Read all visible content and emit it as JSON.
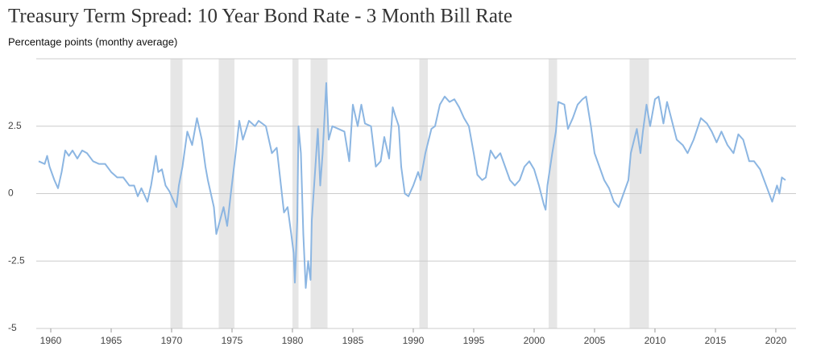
{
  "chart_data": {
    "type": "line",
    "title": "Treasury Term Spread: 10 Year Bond Rate - 3 Month Bill Rate",
    "subtitle": "Percentage points (monthy average)",
    "x": [
      1959.0,
      1959.5,
      1959.7,
      1959.9,
      1960.3,
      1960.6,
      1960.9,
      1961.2,
      1961.5,
      1961.8,
      1962.2,
      1962.6,
      1963.0,
      1963.5,
      1964.0,
      1964.5,
      1965.0,
      1965.5,
      1966.0,
      1966.5,
      1966.9,
      1967.2,
      1967.5,
      1968.0,
      1968.3,
      1968.7,
      1968.9,
      1969.2,
      1969.5,
      1969.8,
      1970.1,
      1970.4,
      1970.6,
      1970.9,
      1971.3,
      1971.7,
      1972.1,
      1972.5,
      1972.8,
      1973.0,
      1973.5,
      1973.7,
      1974.0,
      1974.3,
      1974.6,
      1974.9,
      1975.3,
      1975.6,
      1975.9,
      1976.4,
      1976.9,
      1977.2,
      1977.8,
      1978.3,
      1978.7,
      1979.0,
      1979.3,
      1979.6,
      1979.9,
      1980.1,
      1980.2,
      1980.4,
      1980.5,
      1980.7,
      1980.9,
      1981.1,
      1981.3,
      1981.5,
      1981.6,
      1981.9,
      1982.1,
      1982.3,
      1982.5,
      1982.8,
      1983.0,
      1983.3,
      1983.8,
      1984.3,
      1984.7,
      1985.0,
      1985.4,
      1985.7,
      1986.0,
      1986.5,
      1986.9,
      1987.3,
      1987.6,
      1988.0,
      1988.3,
      1988.5,
      1988.8,
      1989.0,
      1989.3,
      1989.6,
      1990.0,
      1990.4,
      1990.6,
      1991.0,
      1991.5,
      1991.8,
      1992.2,
      1992.6,
      1993.0,
      1993.4,
      1993.8,
      1994.2,
      1994.6,
      1995.0,
      1995.3,
      1995.7,
      1996.0,
      1996.4,
      1996.8,
      1997.2,
      1997.6,
      1998.0,
      1998.4,
      1998.8,
      1999.2,
      1999.6,
      2000.0,
      2000.4,
      2000.8,
      2000.95,
      2001.1,
      2001.5,
      2001.8,
      2002.0,
      2002.5,
      2002.8,
      2003.2,
      2003.6,
      2004.0,
      2004.3,
      2004.7,
      2005.0,
      2005.4,
      2005.8,
      2006.2,
      2006.6,
      2007.0,
      2007.4,
      2007.8,
      2008.0,
      2008.5,
      2008.8,
      2009.0,
      2009.3,
      2009.6,
      2010.0,
      2010.3,
      2010.7,
      2011.0,
      2011.4,
      2011.8,
      2012.3,
      2012.7,
      2013.2,
      2013.8,
      2014.3,
      2014.7,
      2015.1,
      2015.5,
      2016.0,
      2016.5,
      2016.9,
      2017.3,
      2017.8,
      2018.2,
      2018.7,
      2019.2,
      2019.7,
      2020.1,
      2020.3,
      2020.5,
      2020.8
    ],
    "values": [
      1.2,
      1.1,
      1.4,
      1.0,
      0.5,
      0.2,
      0.8,
      1.6,
      1.4,
      1.6,
      1.3,
      1.6,
      1.5,
      1.2,
      1.1,
      1.1,
      0.8,
      0.6,
      0.6,
      0.3,
      0.3,
      -0.1,
      0.2,
      -0.3,
      0.3,
      1.4,
      0.8,
      0.9,
      0.3,
      0.1,
      -0.2,
      -0.5,
      0.3,
      1.0,
      2.3,
      1.8,
      2.8,
      2.0,
      1.0,
      0.5,
      -0.5,
      -1.5,
      -1.0,
      -0.5,
      -1.2,
      0.0,
      1.5,
      2.7,
      2.0,
      2.7,
      2.5,
      2.7,
      2.5,
      1.5,
      1.7,
      0.5,
      -0.7,
      -0.5,
      -1.5,
      -2.2,
      -3.3,
      -1.0,
      2.5,
      1.5,
      -1.5,
      -3.5,
      -2.5,
      -3.2,
      -1.0,
      1.0,
      2.4,
      0.3,
      1.5,
      4.1,
      2.0,
      2.5,
      2.4,
      2.3,
      1.2,
      3.3,
      2.5,
      3.3,
      2.6,
      2.5,
      1.0,
      1.2,
      2.1,
      1.3,
      3.2,
      2.9,
      2.5,
      1.0,
      0.0,
      -0.1,
      0.3,
      0.8,
      0.5,
      1.5,
      2.4,
      2.5,
      3.3,
      3.6,
      3.4,
      3.5,
      3.2,
      2.8,
      2.5,
      1.5,
      0.7,
      0.5,
      0.6,
      1.6,
      1.3,
      1.5,
      1.0,
      0.5,
      0.3,
      0.5,
      1.0,
      1.2,
      0.9,
      0.3,
      -0.4,
      -0.6,
      0.3,
      1.5,
      2.3,
      3.4,
      3.3,
      2.4,
      2.8,
      3.3,
      3.5,
      3.6,
      2.5,
      1.5,
      1.0,
      0.5,
      0.2,
      -0.3,
      -0.5,
      0.0,
      0.5,
      1.5,
      2.4,
      1.5,
      2.3,
      3.3,
      2.5,
      3.5,
      3.6,
      2.6,
      3.4,
      2.7,
      2.0,
      1.8,
      1.5,
      2.0,
      2.8,
      2.6,
      2.3,
      1.9,
      2.3,
      1.8,
      1.5,
      2.2,
      2.0,
      1.2,
      1.2,
      0.9,
      0.3,
      -0.3,
      0.3,
      0.0,
      0.6,
      0.5
    ],
    "color": "#8cb6e2",
    "recessions": [
      [
        1969.9,
        1970.9
      ],
      [
        1973.9,
        1975.2
      ],
      [
        1980.0,
        1980.5
      ],
      [
        1981.5,
        1982.9
      ],
      [
        1990.5,
        1991.2
      ],
      [
        2001.2,
        2001.9
      ],
      [
        2007.9,
        2009.5
      ]
    ],
    "recession_color": "#e6e6e6",
    "xlim": [
      1959,
      2021.67
    ],
    "xticks": [
      1960,
      1965,
      1970,
      1975,
      1980,
      1985,
      1990,
      1995,
      2000,
      2005,
      2010,
      2015,
      2020
    ],
    "ylim": [
      -5,
      5
    ],
    "yticks": [
      -5,
      -2.5,
      0,
      2.5
    ],
    "grid": true
  }
}
